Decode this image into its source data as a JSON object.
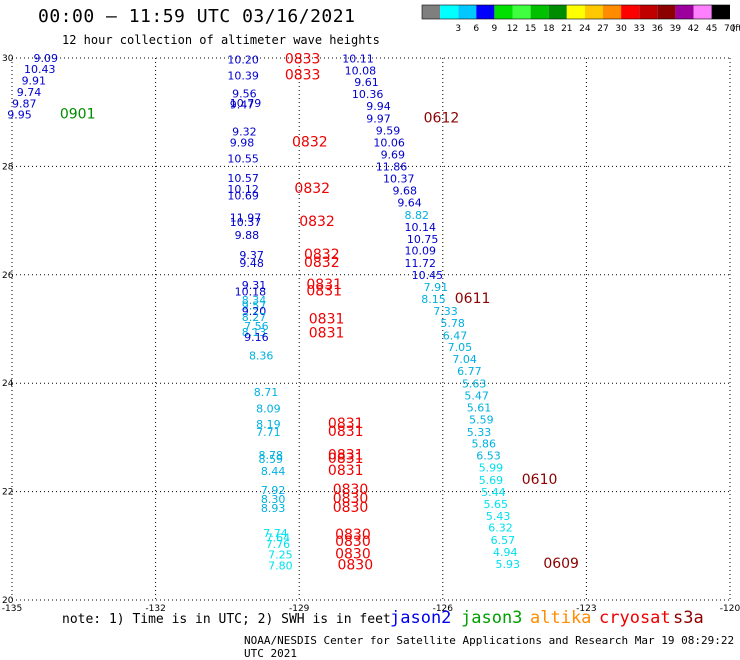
{
  "header": {
    "title": "00:00 – 11:59 UTC 03/16/2021",
    "subtitle": "12 hour collection of altimeter wave heights"
  },
  "color_scale": {
    "unit": "(ft)",
    "swatches": [
      {
        "label": "",
        "color": "#7f7f7f"
      },
      {
        "label": "3",
        "color": "#00ffff"
      },
      {
        "label": "6",
        "color": "#00c8ff"
      },
      {
        "label": "9",
        "color": "#0000ff"
      },
      {
        "label": "12",
        "color": "#00e000"
      },
      {
        "label": "15",
        "color": "#40ff40"
      },
      {
        "label": "18",
        "color": "#00c000"
      },
      {
        "label": "21",
        "color": "#008c00"
      },
      {
        "label": "24",
        "color": "#ffff00"
      },
      {
        "label": "27",
        "color": "#ffc800"
      },
      {
        "label": "30",
        "color": "#ff8c00"
      },
      {
        "label": "33",
        "color": "#ff0000"
      },
      {
        "label": "36",
        "color": "#c00000"
      },
      {
        "label": "39",
        "color": "#8c0000"
      },
      {
        "label": "42",
        "color": "#9c009c"
      },
      {
        "label": "45",
        "color": "#ff80ff"
      },
      {
        "label": "70",
        "color": "#000000"
      }
    ]
  },
  "map": {
    "lon_labels": [
      "-135",
      "-132",
      "-129",
      "-126",
      "-123",
      "-120"
    ],
    "lat_labels": [
      "30",
      "28",
      "26",
      "24",
      "22",
      "20"
    ],
    "lon_range": [
      -135,
      -120
    ],
    "lat_range": [
      20,
      30
    ]
  },
  "observations": [
    {
      "lon": -134.55,
      "lat": 29.93,
      "text": "9.09",
      "color": "#0000cc"
    },
    {
      "lon": -134.75,
      "lat": 29.72,
      "text": "10.43",
      "color": "#0000cc"
    },
    {
      "lon": -134.8,
      "lat": 29.51,
      "text": "9.91",
      "color": "#0000cc"
    },
    {
      "lon": -134.9,
      "lat": 29.3,
      "text": "9.74",
      "color": "#0000cc"
    },
    {
      "lon": -135.0,
      "lat": 29.09,
      "text": "9.87",
      "color": "#0000cc"
    },
    {
      "lon": -135.1,
      "lat": 28.88,
      "text": "9.95",
      "color": "#0000cc"
    },
    {
      "lon": -134.0,
      "lat": 28.88,
      "text": "0901",
      "color": "#008c00",
      "big": true
    },
    {
      "lon": -130.5,
      "lat": 29.9,
      "text": "10.20",
      "color": "#0000cc"
    },
    {
      "lon": -129.3,
      "lat": 29.9,
      "text": "0833",
      "color": "#ee0000",
      "big": true
    },
    {
      "lon": -130.5,
      "lat": 29.6,
      "text": "10.39",
      "color": "#0000cc"
    },
    {
      "lon": -129.3,
      "lat": 29.6,
      "text": "0833",
      "color": "#ee0000",
      "big": true
    },
    {
      "lon": -130.4,
      "lat": 29.27,
      "text": "9.56",
      "color": "#0000cc"
    },
    {
      "lon": -130.45,
      "lat": 29.1,
      "text": "10.79",
      "color": "#0000cc"
    },
    {
      "lon": -130.45,
      "lat": 29.07,
      "text": "9.47",
      "color": "#0000cc"
    },
    {
      "lon": -130.4,
      "lat": 28.57,
      "text": "9.32",
      "color": "#0000cc"
    },
    {
      "lon": -130.45,
      "lat": 28.37,
      "text": "9.98",
      "color": "#0000cc"
    },
    {
      "lon": -129.15,
      "lat": 28.37,
      "text": "0832",
      "color": "#ee0000",
      "big": true
    },
    {
      "lon": -130.5,
      "lat": 28.07,
      "text": "10.55",
      "color": "#0000cc"
    },
    {
      "lon": -128.1,
      "lat": 29.92,
      "text": "10.11",
      "color": "#0000cc"
    },
    {
      "lon": -128.05,
      "lat": 29.7,
      "text": "10.08",
      "color": "#0000cc"
    },
    {
      "lon": -127.85,
      "lat": 29.48,
      "text": "9.61",
      "color": "#0000cc"
    },
    {
      "lon": -127.9,
      "lat": 29.26,
      "text": "10.36",
      "color": "#0000cc"
    },
    {
      "lon": -127.6,
      "lat": 29.04,
      "text": "9.94",
      "color": "#0000cc"
    },
    {
      "lon": -127.6,
      "lat": 28.81,
      "text": "9.97",
      "color": "#0000cc"
    },
    {
      "lon": -126.4,
      "lat": 28.81,
      "text": "0612",
      "color": "#8c0000",
      "big": true
    },
    {
      "lon": -127.4,
      "lat": 28.59,
      "text": "9.59",
      "color": "#0000cc"
    },
    {
      "lon": -127.45,
      "lat": 28.37,
      "text": "10.06",
      "color": "#0000cc"
    },
    {
      "lon": -127.3,
      "lat": 28.15,
      "text": "9.69",
      "color": "#0000cc"
    },
    {
      "lon": -127.4,
      "lat": 27.92,
      "text": "11.86",
      "color": "#0000cc"
    },
    {
      "lon": -127.25,
      "lat": 27.7,
      "text": "10.37",
      "color": "#0000cc"
    },
    {
      "lon": -127.05,
      "lat": 27.48,
      "text": "9.68",
      "color": "#0000cc"
    },
    {
      "lon": -126.95,
      "lat": 27.26,
      "text": "9.64",
      "color": "#0000cc"
    },
    {
      "lon": -126.8,
      "lat": 27.03,
      "text": "8.82",
      "color": "#00b0e0"
    },
    {
      "lon": -126.8,
      "lat": 26.81,
      "text": "10.14",
      "color": "#0000cc"
    },
    {
      "lon": -126.75,
      "lat": 26.59,
      "text": "10.75",
      "color": "#0000cc"
    },
    {
      "lon": -126.8,
      "lat": 26.37,
      "text": "10.09",
      "color": "#0000cc"
    },
    {
      "lon": -126.8,
      "lat": 26.14,
      "text": "11.72",
      "color": "#0000cc"
    },
    {
      "lon": -126.65,
      "lat": 25.92,
      "text": "10.45",
      "color": "#0000cc"
    },
    {
      "lon": -126.4,
      "lat": 25.7,
      "text": "7.91",
      "color": "#00b0e0"
    },
    {
      "lon": -126.45,
      "lat": 25.48,
      "text": "8.15",
      "color": "#00b0e0"
    },
    {
      "lon": -125.75,
      "lat": 25.48,
      "text": "0611",
      "color": "#8c0000",
      "big": true
    },
    {
      "lon": -126.2,
      "lat": 25.26,
      "text": "7.33",
      "color": "#00b0e0"
    },
    {
      "lon": -126.05,
      "lat": 25.04,
      "text": "5.78",
      "color": "#00b0e0"
    },
    {
      "lon": -126.0,
      "lat": 24.81,
      "text": "6.47",
      "color": "#00b0e0"
    },
    {
      "lon": -125.9,
      "lat": 24.59,
      "text": "7.05",
      "color": "#00b0e0"
    },
    {
      "lon": -125.8,
      "lat": 24.37,
      "text": "7.04",
      "color": "#00b0e0"
    },
    {
      "lon": -125.7,
      "lat": 24.15,
      "text": "6.77",
      "color": "#00b0e0"
    },
    {
      "lon": -125.6,
      "lat": 23.92,
      "text": "5.63",
      "color": "#00b0e0"
    },
    {
      "lon": -125.55,
      "lat": 23.7,
      "text": "5.47",
      "color": "#00b0e0"
    },
    {
      "lon": -125.5,
      "lat": 23.48,
      "text": "5.61",
      "color": "#00b0e0"
    },
    {
      "lon": -125.45,
      "lat": 23.26,
      "text": "5.59",
      "color": "#00b0e0"
    },
    {
      "lon": -125.5,
      "lat": 23.03,
      "text": "5.33",
      "color": "#00b0e0"
    },
    {
      "lon": -125.4,
      "lat": 22.81,
      "text": "5.86",
      "color": "#00b0e0"
    },
    {
      "lon": -125.3,
      "lat": 22.59,
      "text": "6.53",
      "color": "#00b0e0"
    },
    {
      "lon": -125.25,
      "lat": 22.37,
      "text": "5.99",
      "color": "#00e0f0"
    },
    {
      "lon": -125.25,
      "lat": 22.14,
      "text": "5.69",
      "color": "#00e0f0"
    },
    {
      "lon": -124.35,
      "lat": 22.14,
      "text": "0610",
      "color": "#8c0000",
      "big": true
    },
    {
      "lon": -125.2,
      "lat": 21.92,
      "text": "5.44",
      "color": "#00e0f0"
    },
    {
      "lon": -125.15,
      "lat": 21.7,
      "text": "5.65",
      "color": "#00e0f0"
    },
    {
      "lon": -125.1,
      "lat": 21.48,
      "text": "5.43",
      "color": "#00e0f0"
    },
    {
      "lon": -125.05,
      "lat": 21.26,
      "text": "6.32",
      "color": "#00e0f0"
    },
    {
      "lon": -125.0,
      "lat": 21.03,
      "text": "6.57",
      "color": "#00e0f0"
    },
    {
      "lon": -124.95,
      "lat": 20.81,
      "text": "4.94",
      "color": "#00e0f0"
    },
    {
      "lon": -124.9,
      "lat": 20.59,
      "text": "5.93",
      "color": "#00e0f0"
    },
    {
      "lon": -123.9,
      "lat": 20.59,
      "text": "0609",
      "color": "#8c0000",
      "big": true
    },
    {
      "lon": -130.5,
      "lat": 27.71,
      "text": "10.57",
      "color": "#0000cc"
    },
    {
      "lon": -130.5,
      "lat": 27.51,
      "text": "10.12",
      "color": "#0000cc"
    },
    {
      "lon": -129.1,
      "lat": 27.51,
      "text": "0832",
      "color": "#ee0000",
      "big": true
    },
    {
      "lon": -130.5,
      "lat": 27.39,
      "text": "10.69",
      "color": "#0000cc"
    },
    {
      "lon": -130.45,
      "lat": 26.98,
      "text": "11.97",
      "color": "#0000cc"
    },
    {
      "lon": -130.45,
      "lat": 26.9,
      "text": "10.37",
      "color": "#0000cc"
    },
    {
      "lon": -129.0,
      "lat": 26.9,
      "text": "0832",
      "color": "#ee0000",
      "big": true
    },
    {
      "lon": -130.35,
      "lat": 26.66,
      "text": "9.88",
      "color": "#0000cc"
    },
    {
      "lon": -130.25,
      "lat": 26.29,
      "text": "9.37",
      "color": "#0000cc"
    },
    {
      "lon": -128.9,
      "lat": 26.29,
      "text": "0832",
      "color": "#ee0000",
      "big": true
    },
    {
      "lon": -130.25,
      "lat": 26.14,
      "text": "9.48",
      "color": "#0000cc"
    },
    {
      "lon": -128.9,
      "lat": 26.14,
      "text": "0832",
      "color": "#ee0000",
      "big": true
    },
    {
      "lon": -130.2,
      "lat": 25.74,
      "text": "9.31",
      "color": "#0000cc"
    },
    {
      "lon": -128.85,
      "lat": 25.74,
      "text": "0831",
      "color": "#ee0000",
      "big": true
    },
    {
      "lon": -130.35,
      "lat": 25.62,
      "text": "10.18",
      "color": "#0000cc"
    },
    {
      "lon": -128.85,
      "lat": 25.62,
      "text": "0831",
      "color": "#ee0000",
      "big": true
    },
    {
      "lon": -130.2,
      "lat": 25.46,
      "text": "8.34",
      "color": "#00b0e0"
    },
    {
      "lon": -130.2,
      "lat": 25.36,
      "text": "9.57",
      "color": "#00b0e0"
    },
    {
      "lon": -130.2,
      "lat": 25.26,
      "text": "9.20",
      "color": "#0000cc"
    },
    {
      "lon": -130.2,
      "lat": 25.15,
      "text": "8.27",
      "color": "#00b0e0"
    },
    {
      "lon": -128.8,
      "lat": 25.1,
      "text": "0831",
      "color": "#ee0000",
      "big": true
    },
    {
      "lon": -130.15,
      "lat": 24.98,
      "text": "7.56",
      "color": "#00b0e0"
    },
    {
      "lon": -130.2,
      "lat": 24.87,
      "text": "8.13",
      "color": "#00b0e0"
    },
    {
      "lon": -128.8,
      "lat": 24.84,
      "text": "0831",
      "color": "#ee0000",
      "big": true
    },
    {
      "lon": -130.15,
      "lat": 24.78,
      "text": "9.16",
      "color": "#0000cc"
    },
    {
      "lon": -130.05,
      "lat": 24.44,
      "text": "8.36",
      "color": "#00b0e0"
    },
    {
      "lon": -129.95,
      "lat": 23.76,
      "text": "8.71",
      "color": "#00b0e0"
    },
    {
      "lon": -129.9,
      "lat": 23.46,
      "text": "8.09",
      "color": "#00b0e0"
    },
    {
      "lon": -129.9,
      "lat": 23.17,
      "text": "8.19",
      "color": "#00b0e0"
    },
    {
      "lon": -128.4,
      "lat": 23.17,
      "text": "0831",
      "color": "#ee0000",
      "big": true
    },
    {
      "lon": -129.9,
      "lat": 23.03,
      "text": "7.71",
      "color": "#00b0e0"
    },
    {
      "lon": -128.4,
      "lat": 23.03,
      "text": "0831",
      "color": "#ee0000",
      "big": true
    },
    {
      "lon": -129.85,
      "lat": 22.6,
      "text": "8.78",
      "color": "#00b0e0"
    },
    {
      "lon": -129.85,
      "lat": 22.53,
      "text": "8.59",
      "color": "#00b0e0"
    },
    {
      "lon": -128.4,
      "lat": 22.59,
      "text": "0831",
      "color": "#ee0000",
      "big": true
    },
    {
      "lon": -128.4,
      "lat": 22.53,
      "text": "0831",
      "color": "#ee0000",
      "big": true
    },
    {
      "lon": -129.8,
      "lat": 22.31,
      "text": "8.44",
      "color": "#00b0e0"
    },
    {
      "lon": -128.4,
      "lat": 22.31,
      "text": "0831",
      "color": "#ee0000",
      "big": true
    },
    {
      "lon": -129.8,
      "lat": 21.96,
      "text": "7.92",
      "color": "#00b0e0"
    },
    {
      "lon": -128.3,
      "lat": 21.96,
      "text": "0830",
      "color": "#ee0000",
      "big": true
    },
    {
      "lon": -129.8,
      "lat": 21.79,
      "text": "8.30",
      "color": "#00b0e0"
    },
    {
      "lon": -128.3,
      "lat": 21.79,
      "text": "0830",
      "color": "#ee0000",
      "big": true
    },
    {
      "lon": -129.8,
      "lat": 21.62,
      "text": "8.93",
      "color": "#00b0e0"
    },
    {
      "lon": -128.3,
      "lat": 21.62,
      "text": "0830",
      "color": "#ee0000",
      "big": true
    },
    {
      "lon": -129.75,
      "lat": 21.16,
      "text": "7.74",
      "color": "#00e0f0"
    },
    {
      "lon": -129.7,
      "lat": 21.08,
      "text": "7.64",
      "color": "#00e0f0"
    },
    {
      "lon": -128.25,
      "lat": 21.13,
      "text": "0830",
      "color": "#ee0000",
      "big": true
    },
    {
      "lon": -128.25,
      "lat": 21.0,
      "text": "0830",
      "color": "#ee0000",
      "big": true
    },
    {
      "lon": -129.7,
      "lat": 20.96,
      "text": "7.76",
      "color": "#00e0f0"
    },
    {
      "lon": -129.65,
      "lat": 20.77,
      "text": "7.25",
      "color": "#00e0f0"
    },
    {
      "lon": -128.25,
      "lat": 20.77,
      "text": "0830",
      "color": "#ee0000",
      "big": true
    },
    {
      "lon": -129.65,
      "lat": 20.56,
      "text": "7.80",
      "color": "#00e0f0"
    },
    {
      "lon": -128.2,
      "lat": 20.56,
      "text": "0830",
      "color": "#ee0000",
      "big": true
    }
  ],
  "footer": {
    "note": "note: 1) Time is in UTC; 2) SWH is in feet",
    "satellites": [
      {
        "name": "jason2",
        "color": "#0000ee"
      },
      {
        "name": "jason3",
        "color": "#00a000"
      },
      {
        "name": "altika",
        "color": "#ff8c00"
      },
      {
        "name": "cryosat",
        "color": "#ee0000"
      },
      {
        "name": "s3a",
        "color": "#8c0000"
      }
    ],
    "credit": "NOAA/NESDIS Center for Satellite Applications and Research   Mar 19 08:29:22 UTC 2021"
  }
}
